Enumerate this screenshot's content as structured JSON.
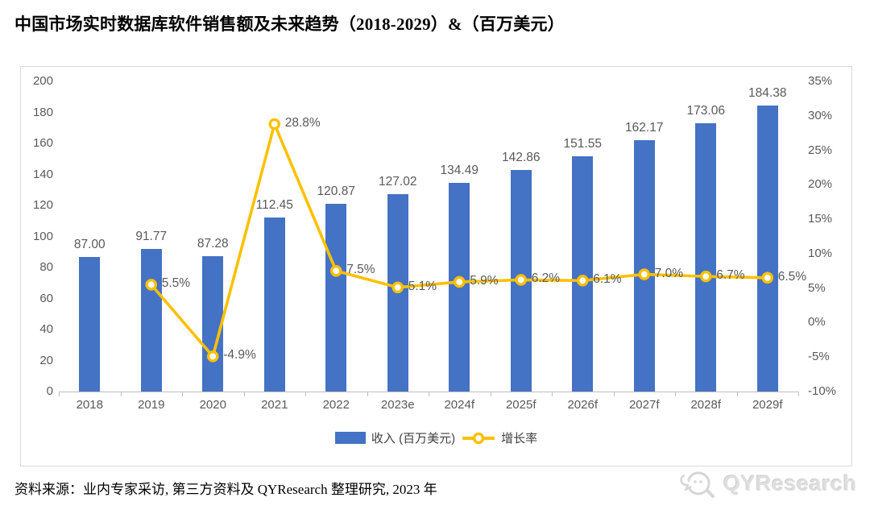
{
  "page": {
    "title": "中国市场实时数据库软件销售额及未来趋势（2018-2029）&（百万美元）",
    "source_note": "资料来源：业内专家采访, 第三方资料及 QYResearch 整理研究, 2023 年",
    "watermark": "QYResearch"
  },
  "colors": {
    "bar": "#4472C4",
    "line": "#FFC000",
    "marker_fill": "#FFFFFF",
    "label_text": "#595959",
    "axis_text": "#595959",
    "legend_text": "#404040",
    "frame_border": "#D9D9D9",
    "axis_line": "#BFBFBF",
    "title_text": "#000000",
    "watermark_text": "#DEDEDE"
  },
  "chart_data": {
    "type": "bar",
    "title": "中国市场实时数据库软件销售额及未来趋势（2018-2029）&（百万美元）",
    "xlabel": "",
    "ylabel_left": "收入 (百万美元)",
    "ylabel_right": "增长率",
    "grid": false,
    "legend_position": "bottom-center",
    "categories": [
      "2018",
      "2019",
      "2020",
      "2021",
      "2022",
      "2023e",
      "2024f",
      "2025f",
      "2026f",
      "2027f",
      "2028f",
      "2029f"
    ],
    "series": [
      {
        "name": "收入 (百万美元)",
        "kind": "bar",
        "axis": "left",
        "values": [
          87.0,
          91.77,
          87.28,
          112.45,
          120.87,
          127.02,
          134.49,
          142.86,
          151.55,
          162.17,
          173.06,
          184.38
        ],
        "value_labels": [
          "87.00",
          "91.77",
          "87.28",
          "112.45",
          "120.87",
          "127.02",
          "134.49",
          "142.86",
          "151.55",
          "162.17",
          "173.06",
          "184.38"
        ]
      },
      {
        "name": "增长率",
        "kind": "line",
        "axis": "right",
        "values": [
          null,
          5.5,
          -4.9,
          28.8,
          7.5,
          5.1,
          5.9,
          6.2,
          6.1,
          7.0,
          6.7,
          6.5
        ],
        "value_labels": [
          "",
          "5.5%",
          "-4.9%",
          "28.8%",
          "7.5%",
          "5.1%",
          "5.9%",
          "6.2%",
          "6.1%",
          "7.0%",
          "6.7%",
          "6.5%"
        ]
      }
    ],
    "left_axis": {
      "min": 0,
      "max": 200,
      "step": 20,
      "ticks": [
        "0",
        "20",
        "40",
        "60",
        "80",
        "100",
        "120",
        "140",
        "160",
        "180",
        "200"
      ]
    },
    "right_axis": {
      "min": -10,
      "max": 35,
      "step": 5,
      "ticks": [
        "-10%",
        "-5%",
        "0%",
        "5%",
        "10%",
        "15%",
        "20%",
        "25%",
        "30%",
        "35%"
      ]
    },
    "legend": [
      "收入 (百万美元)",
      "增长率"
    ]
  }
}
